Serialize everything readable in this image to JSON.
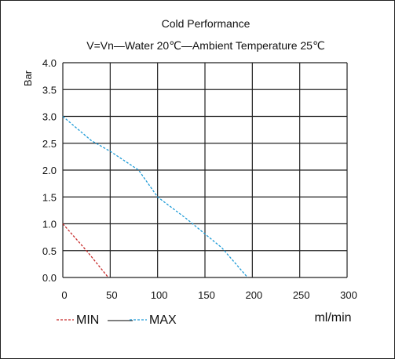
{
  "chart_data": {
    "type": "line",
    "title": "Cold Performance",
    "subtitle": "V=Vn—Water 20℃—Ambient Temperature 25℃",
    "xlabel": "ml/min",
    "ylabel": "Bar",
    "xlim": [
      0,
      300
    ],
    "ylim": [
      0,
      4
    ],
    "x_ticks": [
      "0",
      "50",
      "100",
      "150",
      "200",
      "250",
      "300"
    ],
    "y_ticks": [
      "0.0",
      "0.5",
      "1.0",
      "1.5",
      "2.0",
      "2.5",
      "3.0",
      "3.5",
      "4.0"
    ],
    "grid": true,
    "legend_position": "bottom-left",
    "legend_text": {
      "min": "MIN",
      "separator": "——",
      "max": "MAX"
    },
    "series": [
      {
        "name": "MIN",
        "color": "#c62828",
        "style": "dashed",
        "points": [
          [
            0,
            1.0
          ],
          [
            25,
            0.5
          ],
          [
            48,
            0.0
          ]
        ]
      },
      {
        "name": "MAX",
        "color": "#1e9bd7",
        "style": "dashed",
        "points": [
          [
            0,
            3.0
          ],
          [
            30,
            2.55
          ],
          [
            50,
            2.35
          ],
          [
            80,
            2.0
          ],
          [
            100,
            1.5
          ],
          [
            130,
            1.1
          ],
          [
            168,
            0.55
          ],
          [
            195,
            0.0
          ]
        ]
      }
    ]
  }
}
